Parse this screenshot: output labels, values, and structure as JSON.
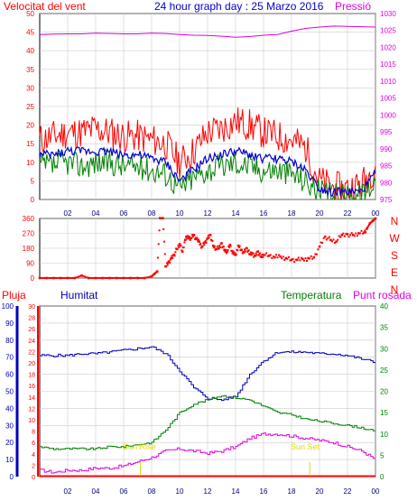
{
  "header": {
    "wind_title": "Velocitat del vent",
    "date_title": "24 hour graph day : 25 Marzo 2016",
    "pressure_title": "Pressió"
  },
  "bottom_header": {
    "rain_title": "Pluja",
    "humidity_title": "Humitat",
    "temp_title": "Temperatura",
    "dew_title": "Punt rosada"
  },
  "annotations": {
    "sunrise": "Sun Rise",
    "sunset": "Sun Set"
  },
  "colors": {
    "wind_gust": "#ff0000",
    "wind_speed": "#008000",
    "wind_avg": "#0000cc",
    "pressure": "#dd00dd",
    "direction": "#ff0000",
    "humidity": "#0000bb",
    "temperature": "#008000",
    "dew_point": "#dd00dd",
    "rain": "#ff0000",
    "sun": "#dddd00",
    "grid": "#cccccc",
    "axis_wind": "#ff0000",
    "axis_pressure": "#dd00dd",
    "axis_humidity": "#0000bb",
    "axis_temp": "#008000"
  },
  "chart_data": [
    {
      "id": "wind-pressure",
      "type": "line",
      "x_tick_labels": [
        "02",
        "04",
        "06",
        "08",
        "10",
        "12",
        "14",
        "16",
        "18",
        "20",
        "22",
        "00"
      ],
      "x_tick_hours": [
        2,
        4,
        6,
        8,
        10,
        12,
        14,
        16,
        18,
        20,
        22,
        24
      ],
      "y_left_ticks": [
        0,
        5,
        10,
        15,
        20,
        25,
        30,
        35,
        40,
        45,
        50
      ],
      "ylim_left": [
        0,
        50
      ],
      "y_right_ticks": [
        975,
        980,
        985,
        990,
        995,
        1000,
        1005,
        1010,
        1015,
        1020,
        1025,
        1030
      ],
      "ylim_right": [
        975,
        1030
      ],
      "series": [
        {
          "key": "gust",
          "x": [
            0,
            1,
            2,
            3,
            4,
            5,
            6,
            7,
            8,
            9,
            10,
            11,
            12,
            13,
            14,
            15,
            16,
            17,
            18,
            19,
            20,
            21,
            22,
            23,
            24
          ],
          "values": [
            16,
            17,
            18,
            18,
            19,
            18,
            17,
            17,
            16,
            15,
            10,
            13,
            18,
            19,
            21,
            20,
            18,
            17,
            16,
            14,
            5,
            3,
            3,
            4,
            9
          ]
        },
        {
          "key": "avg",
          "x": [
            0,
            1,
            2,
            3,
            4,
            5,
            6,
            7,
            8,
            9,
            10,
            11,
            12,
            13,
            14,
            15,
            16,
            17,
            18,
            19,
            20,
            21,
            22,
            23,
            24
          ],
          "values": [
            12,
            12,
            13,
            13,
            13,
            13,
            12,
            12,
            11,
            10,
            5,
            8,
            11,
            12,
            13,
            12,
            11,
            11,
            10,
            8,
            3,
            2,
            2,
            2,
            7
          ]
        },
        {
          "key": "speed",
          "x": [
            0,
            1,
            2,
            3,
            4,
            5,
            6,
            7,
            8,
            9,
            10,
            11,
            12,
            13,
            14,
            15,
            16,
            17,
            18,
            19,
            20,
            21,
            22,
            23,
            24
          ],
          "values": [
            9,
            9,
            10,
            9,
            10,
            10,
            9,
            9,
            8,
            7,
            3,
            6,
            8,
            9,
            10,
            9,
            8,
            8,
            7,
            5,
            2,
            1,
            1,
            1,
            5
          ]
        },
        {
          "key": "pressure",
          "x": [
            0,
            1,
            2,
            3,
            4,
            5,
            6,
            7,
            8,
            9,
            10,
            11,
            12,
            13,
            14,
            15,
            16,
            17,
            18,
            19,
            20,
            21,
            22,
            23,
            24
          ],
          "values": [
            1023.8,
            1023.9,
            1024.0,
            1024.0,
            1024.2,
            1024.1,
            1024.0,
            1024.0,
            1024.2,
            1024.1,
            1023.8,
            1023.6,
            1023.5,
            1023.3,
            1023.0,
            1023.2,
            1023.6,
            1023.8,
            1024.8,
            1025.6,
            1026.0,
            1026.3,
            1026.2,
            1026.1,
            1026.0
          ]
        }
      ]
    },
    {
      "id": "wind-direction",
      "type": "scatter",
      "x_tick_hours": [
        2,
        4,
        6,
        8,
        10,
        12,
        14,
        16,
        18,
        20,
        22,
        24
      ],
      "y_left_ticks": [
        0,
        90,
        180,
        270,
        360
      ],
      "ylim": [
        0,
        360
      ],
      "compass_labels": [
        "N",
        "W",
        "S",
        "E",
        "N"
      ],
      "points": {
        "x": [
          0,
          0.5,
          1,
          1.5,
          2,
          2.5,
          3,
          3.5,
          4,
          4.5,
          5,
          5.5,
          6,
          6.5,
          7,
          7.5,
          8,
          8.2,
          8.4,
          8.6,
          8.8,
          9.0,
          9.2,
          9.4,
          9.6,
          9.8,
          10.0,
          10.2,
          10.4,
          10.6,
          10.8,
          11.0,
          11.2,
          11.4,
          11.6,
          11.8,
          12.0,
          12.2,
          12.4,
          12.6,
          12.8,
          13.0,
          13.2,
          13.4,
          13.6,
          13.8,
          14.0,
          14.2,
          14.4,
          14.6,
          14.8,
          15.0,
          15.2,
          15.4,
          15.6,
          15.8,
          16.0,
          16.4,
          16.8,
          17.2,
          17.6,
          18.0,
          18.4,
          18.8,
          19.2,
          19.6,
          20.0,
          20.4,
          20.8,
          21.2,
          21.6,
          22.0,
          22.4,
          22.8,
          23.2,
          23.4,
          23.6,
          23.8,
          24.0
        ],
        "y": [
          0,
          0,
          0,
          0,
          0,
          0,
          15,
          0,
          0,
          0,
          0,
          0,
          0,
          0,
          0,
          0,
          10,
          25,
          40,
          370,
          370,
          70,
          95,
          120,
          140,
          175,
          205,
          160,
          230,
          250,
          240,
          260,
          235,
          220,
          190,
          215,
          240,
          260,
          195,
          175,
          180,
          210,
          170,
          160,
          200,
          150,
          140,
          195,
          170,
          155,
          180,
          145,
          150,
          135,
          160,
          130,
          140,
          135,
          125,
          130,
          120,
          110,
          110,
          115,
          120,
          125,
          190,
          250,
          230,
          220,
          260,
          265,
          260,
          270,
          275,
          300,
          330,
          345,
          360
        ]
      }
    },
    {
      "id": "hum-temp-rain",
      "type": "line",
      "x_tick_hours": [
        2,
        4,
        6,
        8,
        10,
        12,
        14,
        16,
        18,
        20,
        22,
        24
      ],
      "x_tick_labels": [
        "02",
        "04",
        "06",
        "08",
        "10",
        "12",
        "14",
        "16",
        "18",
        "20",
        "22",
        "00"
      ],
      "y_hum_ticks": [
        0,
        10,
        20,
        30,
        40,
        50,
        60,
        70,
        80,
        90,
        100
      ],
      "ylim_hum": [
        0,
        100
      ],
      "y_rain_ticks": [
        0,
        2,
        4,
        6,
        8,
        10,
        12,
        14,
        16,
        18,
        20,
        22,
        24,
        26,
        28,
        30
      ],
      "ylim_rain": [
        0,
        30
      ],
      "y_temp_ticks": [
        0,
        5,
        10,
        15,
        20,
        25,
        30,
        35,
        40
      ],
      "ylim_temp": [
        0,
        40
      ],
      "series": [
        {
          "key": "humidity",
          "x": [
            0,
            1,
            2,
            3,
            4,
            5,
            6,
            7,
            8,
            9,
            10,
            11,
            12,
            13,
            14,
            15,
            16,
            17,
            18,
            19,
            20,
            21,
            22,
            23,
            24
          ],
          "values": [
            71,
            71,
            71,
            72,
            72,
            73,
            74,
            75,
            76,
            72,
            62,
            52,
            46,
            45,
            47,
            60,
            68,
            73,
            73,
            73,
            72,
            72,
            71,
            69,
            67
          ]
        },
        {
          "key": "temperature",
          "x": [
            0,
            1,
            2,
            3,
            4,
            5,
            6,
            7,
            8,
            9,
            10,
            11,
            12,
            13,
            14,
            15,
            16,
            17,
            18,
            19,
            20,
            21,
            22,
            23,
            24
          ],
          "values": [
            7,
            6.5,
            6.5,
            6.5,
            6.5,
            7,
            7,
            7.5,
            8,
            11,
            15,
            17,
            18,
            19,
            18.5,
            18,
            16.5,
            15,
            14.5,
            13.5,
            13,
            12.5,
            12,
            11.5,
            10.5
          ]
        },
        {
          "key": "dew",
          "x": [
            0,
            1,
            2,
            3,
            4,
            5,
            6,
            7,
            8,
            9,
            10,
            11,
            12,
            13,
            14,
            15,
            16,
            17,
            18,
            19,
            20,
            21,
            22,
            23,
            24
          ],
          "values": [
            1.5,
            1,
            1.5,
            1.5,
            2,
            2,
            2.5,
            3.5,
            4.5,
            6,
            6.5,
            6,
            5.5,
            6,
            7,
            9,
            10,
            10,
            9.5,
            9,
            8.5,
            8,
            7,
            6,
            4
          ]
        },
        {
          "key": "rain",
          "x": [
            0,
            24
          ],
          "values": [
            0,
            0
          ]
        }
      ],
      "sunrise_hour": 7.2,
      "sunset_hour": 19.3
    }
  ]
}
